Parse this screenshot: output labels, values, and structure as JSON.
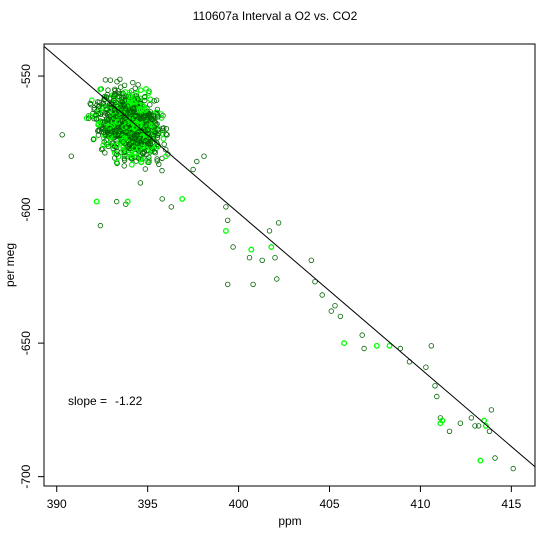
{
  "chart_data": {
    "type": "scatter",
    "title": "110607a   Interval a O2 vs. CO2",
    "xlabel": "ppm",
    "ylabel": "per meg",
    "xlim": [
      389.3,
      416.3
    ],
    "ylim": [
      -703.5,
      -538
    ],
    "x_ticks": [
      390,
      395,
      400,
      405,
      410,
      415
    ],
    "y_ticks": [
      -550,
      -600,
      -650,
      -700
    ],
    "grid": false,
    "annotation": {
      "label": "slope = ",
      "value": "-1.22"
    },
    "fit_line": {
      "slope": -1.22,
      "x": [
        389.3,
        416.3
      ],
      "y": [
        -538.9,
        -696.3
      ]
    },
    "cluster": {
      "x_center": 394.0,
      "y_center": -568.0,
      "x_spread": 1.5,
      "y_spread": 11.0,
      "count": 1100,
      "green_fraction": 0.3
    },
    "series": [
      {
        "color_dark": "#006400",
        "color_green": "#00ff00",
        "points": [
          [
            390.3,
            -572
          ],
          [
            390.8,
            -580
          ],
          [
            392.4,
            -606
          ],
          [
            392.2,
            -597,
            "g"
          ],
          [
            393.3,
            -597
          ],
          [
            393.8,
            -598
          ],
          [
            393.9,
            -597,
            "g"
          ],
          [
            394.6,
            -590
          ],
          [
            395.8,
            -596
          ],
          [
            396.3,
            -599
          ],
          [
            396.9,
            -596,
            "g"
          ],
          [
            397.5,
            -585
          ],
          [
            397.7,
            -582
          ],
          [
            398.1,
            -580
          ],
          [
            399.3,
            -599
          ],
          [
            399.4,
            -604
          ],
          [
            399.3,
            -608,
            "g"
          ],
          [
            399.7,
            -614
          ],
          [
            399.4,
            -628
          ],
          [
            400.7,
            -615,
            "g"
          ],
          [
            400.6,
            -618
          ],
          [
            400.8,
            -628
          ],
          [
            401.3,
            -619
          ],
          [
            401.7,
            -608
          ],
          [
            401.8,
            -614,
            "g"
          ],
          [
            402.0,
            -618
          ],
          [
            402.1,
            -626
          ],
          [
            402.2,
            -605
          ],
          [
            404.0,
            -619
          ],
          [
            404.2,
            -627
          ],
          [
            404.6,
            -632
          ],
          [
            405.1,
            -638
          ],
          [
            405.3,
            -636
          ],
          [
            405.6,
            -640
          ],
          [
            405.8,
            -650,
            "g"
          ],
          [
            406.8,
            -647
          ],
          [
            406.9,
            -652
          ],
          [
            407.6,
            -651,
            "g"
          ],
          [
            408.3,
            -651,
            "g"
          ],
          [
            408.9,
            -652
          ],
          [
            409.4,
            -657
          ],
          [
            410.3,
            -659
          ],
          [
            410.6,
            -651
          ],
          [
            410.8,
            -666
          ],
          [
            410.9,
            -670
          ],
          [
            411.1,
            -678
          ],
          [
            411.1,
            -680,
            "g"
          ],
          [
            411.2,
            -679,
            "g"
          ],
          [
            411.6,
            -683
          ],
          [
            412.2,
            -680
          ],
          [
            412.8,
            -678
          ],
          [
            413.0,
            -681
          ],
          [
            413.2,
            -681
          ],
          [
            413.3,
            -694,
            "g"
          ],
          [
            413.5,
            -679,
            "g"
          ],
          [
            413.6,
            -681,
            "g"
          ],
          [
            413.8,
            -683
          ],
          [
            413.9,
            -675
          ],
          [
            414.1,
            -693
          ],
          [
            415.1,
            -697
          ]
        ]
      }
    ]
  }
}
